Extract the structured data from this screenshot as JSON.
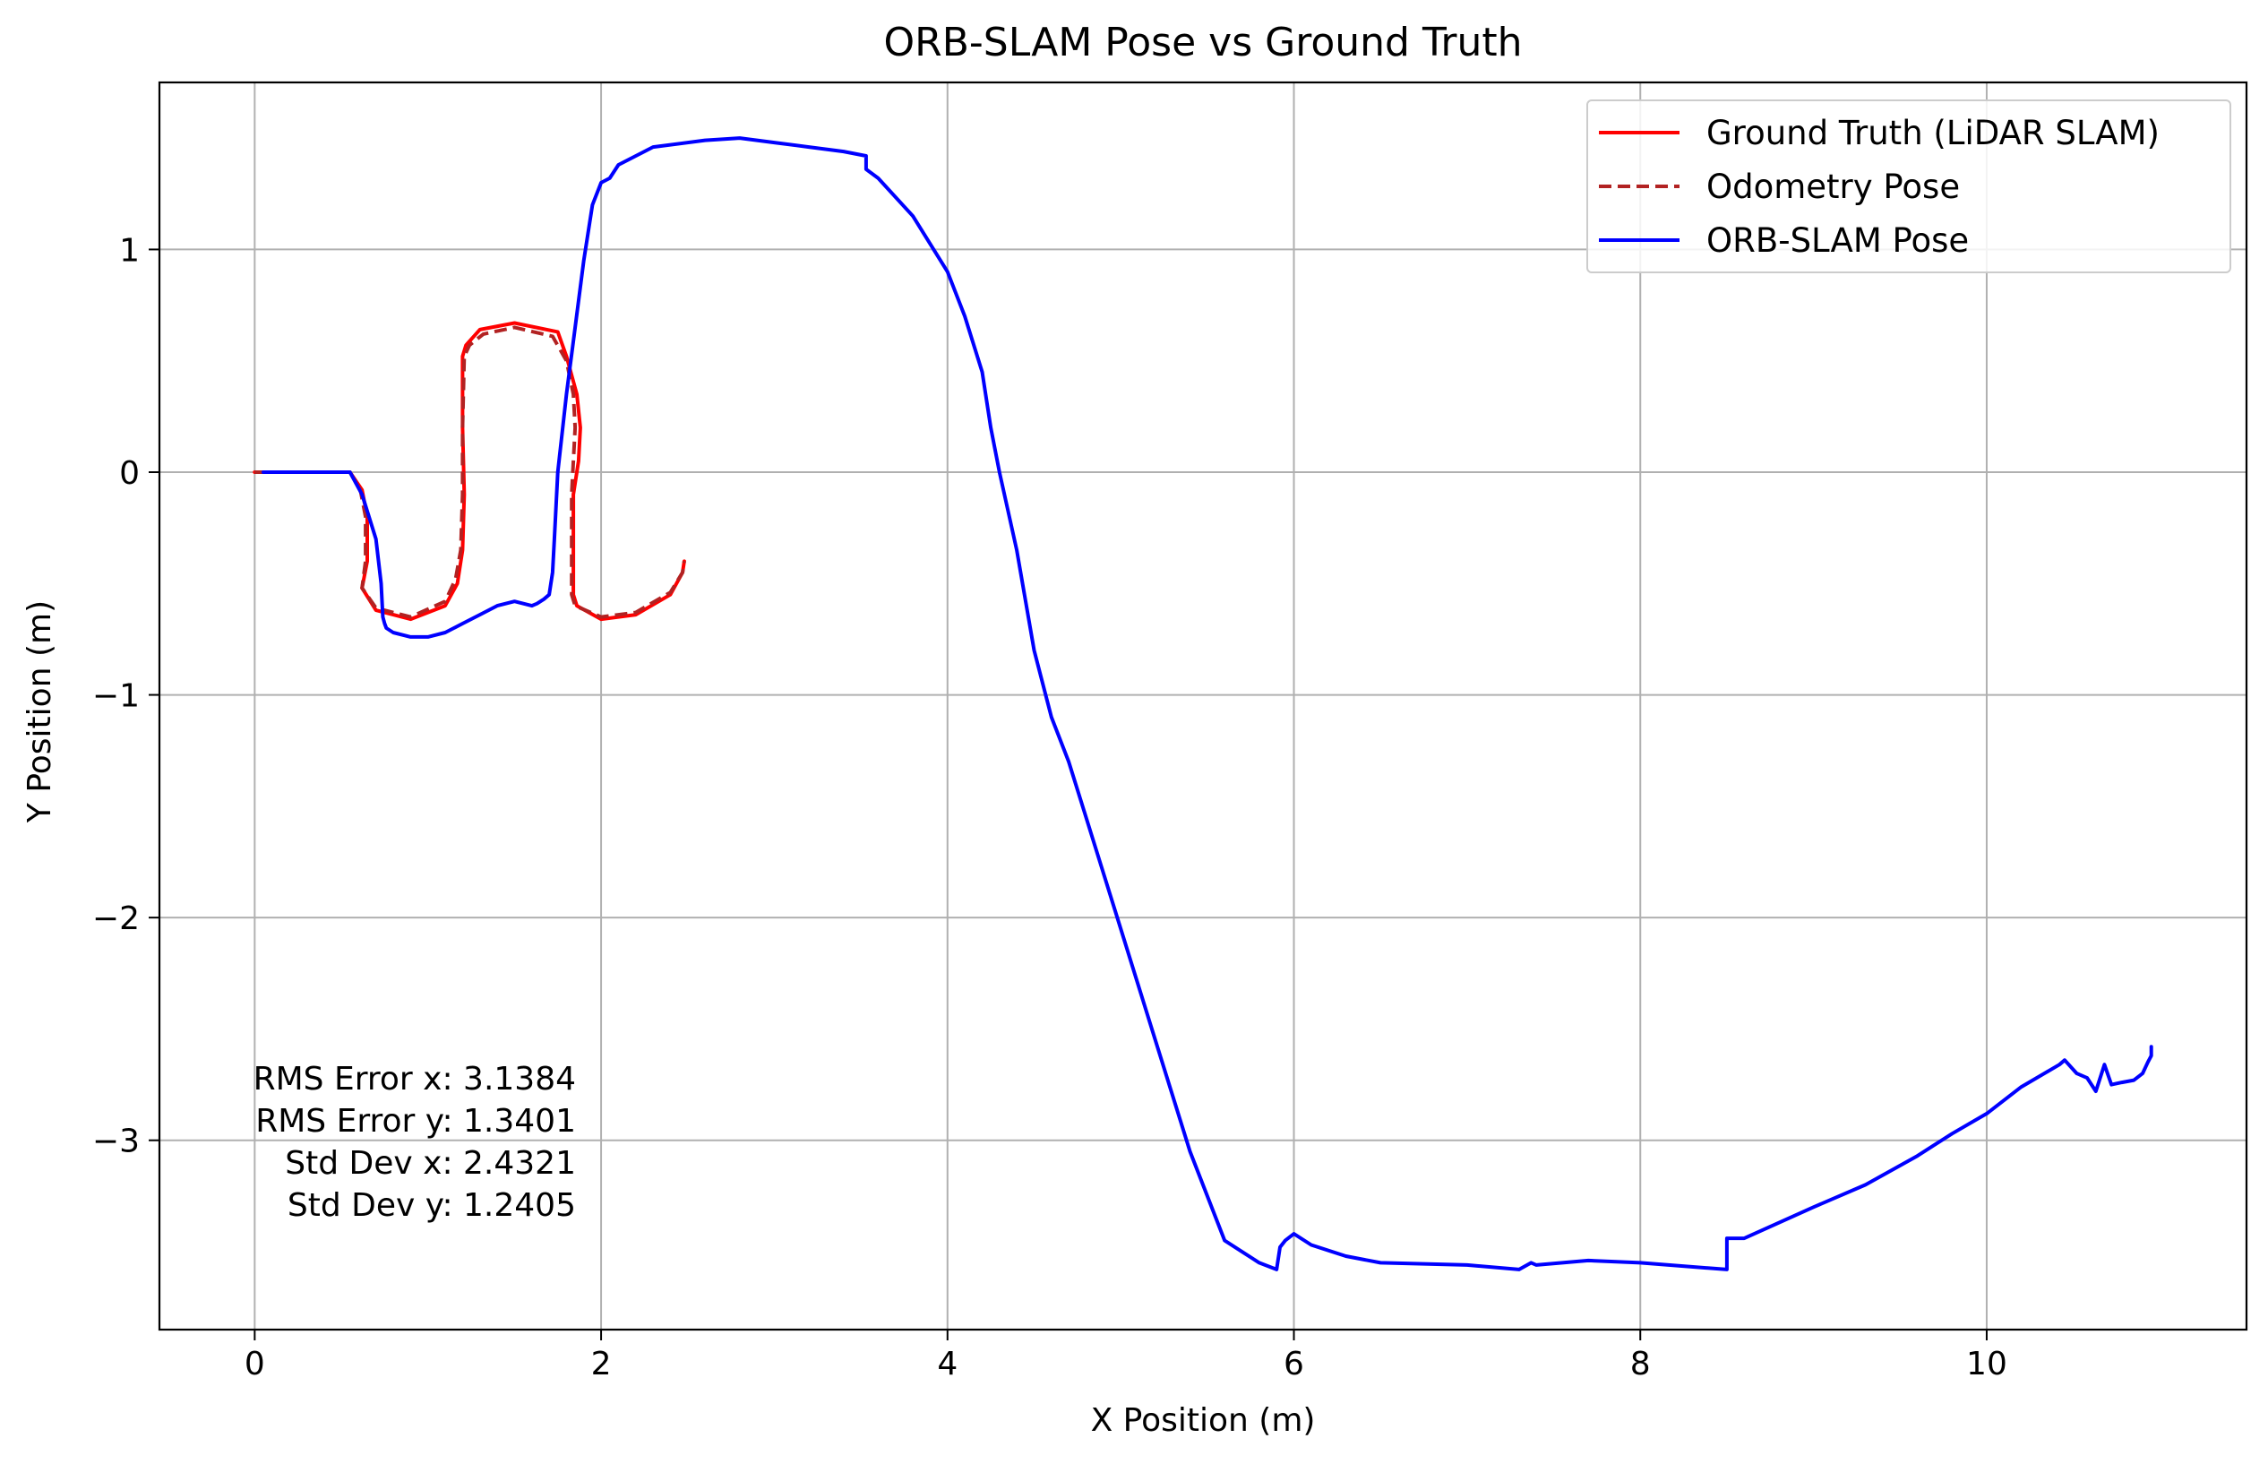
{
  "chart_data": {
    "type": "line",
    "title": "ORB-SLAM Pose vs Ground Truth",
    "xlabel": "X Position (m)",
    "ylabel": "Y Position (m)",
    "xlim": [
      -0.55,
      11.5
    ],
    "ylim": [
      -3.85,
      1.75
    ],
    "xticks": [
      0,
      2,
      4,
      6,
      8,
      10
    ],
    "xtick_labels": [
      "0",
      "2",
      "4",
      "6",
      "8",
      "10"
    ],
    "yticks": [
      1,
      0,
      -1,
      -2,
      -3
    ],
    "ytick_labels": [
      "1",
      "0",
      "−1",
      "−2",
      "−3"
    ],
    "grid": true,
    "legend_position": "top-right",
    "series": [
      {
        "name": "Ground Truth (LiDAR SLAM)",
        "color": "#ff0000",
        "style": "solid",
        "x": [
          0,
          0.55,
          0.62,
          0.65,
          0.65,
          0.62,
          0.7,
          0.9,
          1.1,
          1.17,
          1.2,
          1.21,
          1.2,
          1.2,
          1.22,
          1.3,
          1.5,
          1.75,
          1.8,
          1.86,
          1.88,
          1.87,
          1.84,
          1.84,
          1.86,
          2.0,
          2.2,
          2.4,
          2.47,
          2.48
        ],
        "y": [
          0,
          0,
          -0.08,
          -0.2,
          -0.4,
          -0.52,
          -0.62,
          -0.66,
          -0.6,
          -0.5,
          -0.35,
          -0.1,
          0.2,
          0.52,
          0.57,
          0.64,
          0.67,
          0.63,
          0.52,
          0.35,
          0.2,
          0.05,
          -0.1,
          -0.55,
          -0.6,
          -0.66,
          -0.64,
          -0.55,
          -0.45,
          -0.4
        ]
      },
      {
        "name": "Odometry Pose",
        "color": "#b22222",
        "style": "dashed",
        "x": [
          0,
          0.55,
          0.61,
          0.64,
          0.64,
          0.62,
          0.7,
          0.9,
          1.1,
          1.16,
          1.19,
          1.2,
          1.2,
          1.21,
          1.24,
          1.32,
          1.5,
          1.72,
          1.8,
          1.84,
          1.85,
          1.84,
          1.83,
          1.83,
          1.85,
          2.0,
          2.2,
          2.4,
          2.47,
          2.48
        ],
        "y": [
          0,
          0,
          -0.08,
          -0.2,
          -0.4,
          -0.52,
          -0.61,
          -0.65,
          -0.58,
          -0.48,
          -0.35,
          -0.1,
          0.2,
          0.52,
          0.57,
          0.62,
          0.65,
          0.61,
          0.5,
          0.35,
          0.2,
          0.05,
          -0.1,
          -0.55,
          -0.6,
          -0.65,
          -0.63,
          -0.54,
          -0.45,
          -0.4
        ]
      },
      {
        "name": "ORB-SLAM Pose",
        "color": "#0000ff",
        "style": "solid",
        "x": [
          0.05,
          0.55,
          0.62,
          0.7,
          0.73,
          0.74,
          0.75,
          0.76,
          0.8,
          0.9,
          1.0,
          1.1,
          1.15,
          1.2,
          1.3,
          1.4,
          1.5,
          1.6,
          1.63,
          1.67,
          1.7,
          1.72,
          1.73,
          1.75,
          1.8,
          1.85,
          1.9,
          1.95,
          2.0,
          2.05,
          2.1,
          2.3,
          2.6,
          2.8,
          3.0,
          3.2,
          3.4,
          3.53,
          3.53,
          3.6,
          3.8,
          4.0,
          4.1,
          4.2,
          4.25,
          4.3,
          4.4,
          4.5,
          4.6,
          4.7,
          4.8,
          5.0,
          5.2,
          5.4,
          5.6,
          5.8,
          5.9,
          5.92,
          5.95,
          6.0,
          6.1,
          6.3,
          6.5,
          7.0,
          7.3,
          7.37,
          7.4,
          7.7,
          8.0,
          8.5,
          8.5,
          8.6,
          9.0,
          9.3,
          9.6,
          9.8,
          10.0,
          10.2,
          10.42,
          10.45,
          10.52,
          10.58,
          10.63,
          10.68,
          10.72,
          10.78,
          10.85,
          10.9,
          10.93,
          10.95,
          10.95
        ],
        "y": [
          0,
          0,
          -0.1,
          -0.3,
          -0.5,
          -0.65,
          -0.68,
          -0.7,
          -0.72,
          -0.74,
          -0.74,
          -0.72,
          -0.7,
          -0.68,
          -0.64,
          -0.6,
          -0.58,
          -0.6,
          -0.59,
          -0.57,
          -0.55,
          -0.45,
          -0.3,
          0,
          0.35,
          0.65,
          0.95,
          1.2,
          1.3,
          1.32,
          1.38,
          1.46,
          1.49,
          1.5,
          1.48,
          1.46,
          1.44,
          1.42,
          1.36,
          1.32,
          1.15,
          0.9,
          0.7,
          0.45,
          0.2,
          0,
          -0.35,
          -0.8,
          -1.1,
          -1.3,
          -1.55,
          -2.05,
          -2.55,
          -3.05,
          -3.45,
          -3.55,
          -3.58,
          -3.48,
          -3.45,
          -3.42,
          -3.47,
          -3.52,
          -3.55,
          -3.56,
          -3.58,
          -3.55,
          -3.56,
          -3.54,
          -3.55,
          -3.58,
          -3.44,
          -3.44,
          -3.3,
          -3.2,
          -3.07,
          -2.97,
          -2.88,
          -2.76,
          -2.66,
          -2.64,
          -2.7,
          -2.72,
          -2.78,
          -2.66,
          -2.75,
          -2.74,
          -2.73,
          -2.7,
          -2.65,
          -2.62,
          -2.58
        ]
      }
    ],
    "annotations": [
      "RMS Error x: 3.1384",
      "RMS Error y: 1.3401",
      "Std Dev x: 2.4321",
      "Std Dev y: 1.2405"
    ]
  }
}
